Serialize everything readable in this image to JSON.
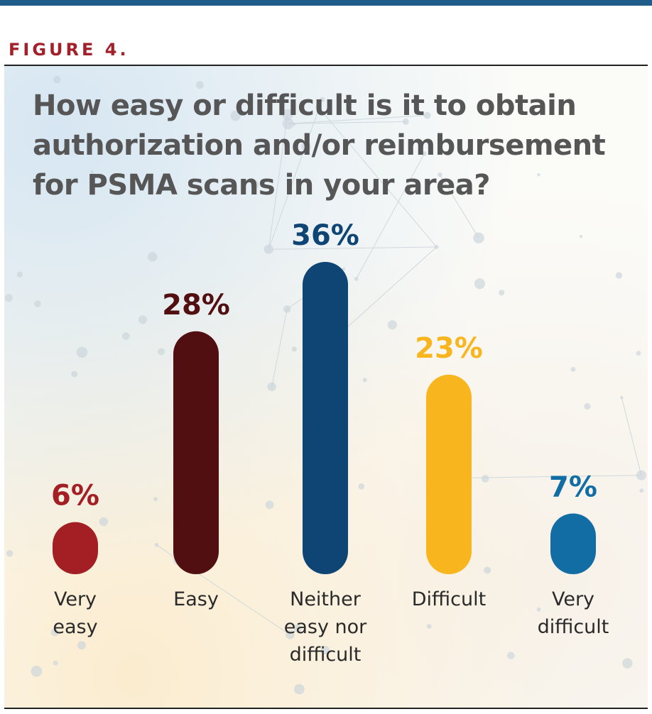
{
  "figure_label": "FIGURE 4.",
  "colors": {
    "rule": "#1f5c8a",
    "figure_label": "#a31f2a",
    "title": "#565656"
  },
  "chart_data": {
    "type": "bar",
    "title": "How easy or difficult is it to obtain authorization and/or reimbursement for PSMA scans in your area?",
    "categories": [
      [
        "Very",
        "easy"
      ],
      [
        "Easy"
      ],
      [
        "Neither",
        "easy nor",
        "difficult"
      ],
      [
        "Difficult"
      ],
      [
        "Very",
        "difficult"
      ]
    ],
    "values": [
      6,
      28,
      36,
      23,
      7
    ],
    "value_labels": [
      "6%",
      "28%",
      "36%",
      "23%",
      "7%"
    ],
    "bar_colors": [
      "#a31f24",
      "#510f12",
      "#0e4574",
      "#f9b51e",
      "#136da5"
    ],
    "unit": "%",
    "ylim": [
      0,
      36
    ],
    "grid": false,
    "legend": "none"
  }
}
